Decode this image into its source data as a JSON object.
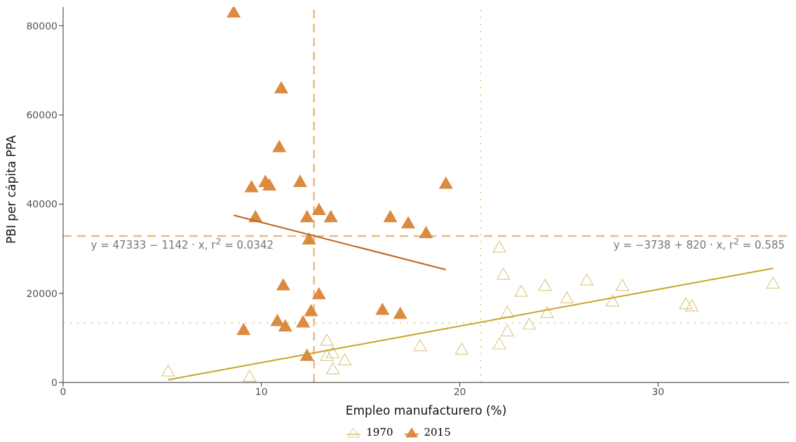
{
  "chart_data": {
    "type": "scatter",
    "xlabel": "Empleo manufacturero (%)",
    "ylabel": "PBI per cápita PPA",
    "xlim": [
      0,
      36.6
    ],
    "xticks": [
      0,
      10,
      20,
      30
    ],
    "ylim": [
      0,
      84200
    ],
    "yticks": [
      0,
      20000,
      40000,
      60000,
      80000
    ],
    "legend": "bottom",
    "marker": "triangle",
    "series": [
      {
        "name": "1970",
        "color": "#dccb8c",
        "x": [
          5.3,
          9.4,
          13.3,
          13.3,
          13.6,
          13.6,
          14.2,
          18.0,
          20.1,
          22.0,
          22.2,
          23.1,
          24.3,
          25.4,
          26.4,
          28.2,
          27.7,
          22.4,
          24.4,
          23.5,
          22.4,
          22.0,
          31.4,
          31.7,
          35.8
        ],
        "values": [
          2500,
          1300,
          9400,
          6000,
          6600,
          3000,
          5000,
          8200,
          7400,
          30300,
          24200,
          20400,
          21700,
          18900,
          22900,
          21700,
          18200,
          15700,
          15600,
          13000,
          11500,
          8600,
          17600,
          17100,
          22200
        ]
      },
      {
        "name": "2015",
        "color": "#db8a40",
        "x": [
          8.6,
          11.0,
          10.9,
          9.5,
          10.2,
          10.4,
          11.95,
          19.3,
          9.7,
          12.9,
          12.3,
          13.5,
          16.5,
          17.4,
          18.3,
          12.4,
          11.1,
          12.9,
          12.5,
          16.1,
          17.0,
          10.8,
          12.1,
          11.2,
          9.1,
          12.3
        ],
        "values": [
          83000,
          66000,
          52800,
          43800,
          45000,
          44200,
          45000,
          44600,
          37100,
          38700,
          37100,
          37100,
          37100,
          35700,
          33500,
          32100,
          21800,
          19800,
          16000,
          16300,
          15400,
          13800,
          13500,
          12600,
          11800,
          6000
        ]
      },
      {
        "type": "line",
        "marker": "none",
        "color": "#c9a227",
        "x": [
          5.3,
          35.8
        ],
        "values": [
          600,
          25600
        ]
      },
      {
        "type": "line",
        "marker": "none",
        "color": "#c0651c",
        "x": [
          8.6,
          19.3
        ],
        "values": [
          37500,
          25300
        ]
      }
    ],
    "ref_lines": [
      {
        "axis": "x",
        "value": 12.65,
        "color": "#e9b98a",
        "line_style": "dashed"
      },
      {
        "axis": "y",
        "value": 32850,
        "color": "#e9b98a",
        "line_style": "dashed"
      },
      {
        "axis": "x",
        "value": 21.05,
        "color": "#e6d9a0",
        "line_style": "dotted"
      },
      {
        "axis": "y",
        "value": 13360,
        "color": "#e6d9a0",
        "line_style": "dotted"
      }
    ],
    "annotations": [
      "y = 47333 − 1142 · x,  r$^{2}$ = 0.0342",
      "y = −3738 + 820 · x,  r$^{2}$ = 0.585"
    ]
  }
}
